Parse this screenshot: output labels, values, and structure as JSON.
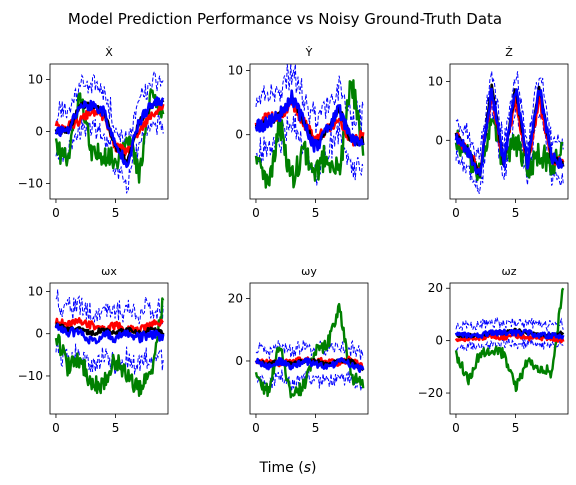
{
  "figure": {
    "title": "Model Prediction Performance vs Noisy Ground-Truth Data",
    "xlabel_prefix": "Time (",
    "xlabel_unit": "s",
    "xlabel_suffix": ")"
  },
  "colors": {
    "ground_truth": "#008000",
    "prediction_a": "#ff0000",
    "prediction_b": "#0000ff",
    "prediction_c": "#000000",
    "bounds": "#0000ff"
  },
  "chart_data": [
    {
      "type": "line",
      "title": "Ẋ",
      "xlim": [
        -0.5,
        9.4
      ],
      "ylim": [
        -13,
        13
      ],
      "xticks": [
        0,
        5
      ],
      "yticks": [
        -10,
        0,
        10
      ],
      "grid": false,
      "seed": 11,
      "series": [
        {
          "role": "ground_truth",
          "color": "#008000",
          "x": [
            0,
            1,
            2,
            3,
            4,
            5,
            6,
            7,
            8,
            9
          ],
          "values": [
            -3,
            -6,
            8,
            -5,
            -4,
            -6,
            0,
            -9,
            8,
            2
          ]
        },
        {
          "role": "prediction_a",
          "color": "#ff0000",
          "x": [
            0,
            1,
            2,
            3,
            4,
            5,
            6,
            7,
            8,
            9
          ],
          "values": [
            1,
            1,
            2,
            4,
            3,
            -3,
            -4,
            0,
            3,
            5
          ]
        },
        {
          "role": "prediction_b",
          "color": "#0000ff",
          "x": [
            0,
            1,
            2,
            3,
            4,
            5,
            6,
            7,
            8,
            9
          ],
          "values": [
            0,
            0,
            5,
            5,
            4,
            -3,
            -6,
            2,
            5,
            6
          ]
        },
        {
          "role": "prediction_c",
          "color": "#000000",
          "x": [
            0,
            1,
            2,
            3,
            4,
            5,
            6,
            7,
            8,
            9
          ],
          "values": [
            0,
            0,
            5,
            5,
            4,
            -3,
            -6,
            2,
            5,
            6
          ]
        }
      ],
      "band_width": 4
    },
    {
      "type": "line",
      "title": "Ẏ",
      "xlim": [
        -0.5,
        9.4
      ],
      "ylim": [
        -10,
        11
      ],
      "xticks": [
        0,
        5
      ],
      "yticks": [
        0,
        10
      ],
      "grid": false,
      "seed": 23,
      "series": [
        {
          "role": "ground_truth",
          "color": "#008000",
          "x": [
            0,
            1,
            2,
            3,
            4,
            5,
            6,
            7,
            8,
            9
          ],
          "values": [
            -3,
            -8,
            2,
            -7,
            -2,
            -6,
            -3,
            -6,
            9,
            -4
          ]
        },
        {
          "role": "prediction_a",
          "color": "#ff0000",
          "x": [
            0,
            1,
            2,
            3,
            4,
            5,
            6,
            7,
            8,
            9
          ],
          "values": [
            1,
            3,
            3,
            5,
            2,
            -1,
            1,
            2,
            -1,
            0
          ]
        },
        {
          "role": "prediction_b",
          "color": "#0000ff",
          "x": [
            0,
            1,
            2,
            3,
            4,
            5,
            6,
            7,
            8,
            9
          ],
          "values": [
            1,
            2,
            3,
            6,
            2,
            -2,
            1,
            4,
            -1,
            -1
          ]
        },
        {
          "role": "prediction_c",
          "color": "#000000",
          "x": [
            0,
            1,
            2,
            3,
            4,
            5,
            6,
            7,
            8,
            9
          ],
          "values": [
            1,
            2,
            3,
            6,
            2,
            -2,
            1,
            4,
            -1,
            -1
          ]
        }
      ],
      "band_width": 4
    },
    {
      "type": "line",
      "title": "Ż",
      "xlim": [
        -0.5,
        9.4
      ],
      "ylim": [
        -10,
        13
      ],
      "xticks": [
        0,
        5
      ],
      "yticks": [
        0,
        10
      ],
      "grid": false,
      "seed": 37,
      "series": [
        {
          "role": "ground_truth",
          "color": "#008000",
          "x": [
            0,
            1,
            2,
            3,
            4,
            5,
            6,
            7,
            8,
            9
          ],
          "values": [
            0,
            -3,
            -6,
            4,
            -4,
            0,
            -5,
            -2,
            -4,
            -2
          ]
        },
        {
          "role": "prediction_a",
          "color": "#ff0000",
          "x": [
            0,
            1,
            2,
            3,
            4,
            5,
            6,
            7,
            8,
            9
          ],
          "values": [
            1,
            -2,
            -5,
            8,
            -4,
            7,
            -4,
            7,
            -3,
            -4
          ]
        },
        {
          "role": "prediction_b",
          "color": "#0000ff",
          "x": [
            0,
            1,
            2,
            3,
            4,
            5,
            6,
            7,
            8,
            9
          ],
          "values": [
            1,
            -2,
            -6,
            9,
            -4,
            9,
            -4,
            9,
            -3,
            -4
          ]
        },
        {
          "role": "prediction_c",
          "color": "#000000",
          "x": [
            0,
            1,
            2,
            3,
            4,
            5,
            6,
            7,
            8,
            9
          ],
          "values": [
            1,
            -2,
            -6,
            9,
            -4,
            9,
            -4,
            9,
            -3,
            -4
          ]
        }
      ],
      "band_width": 3
    },
    {
      "type": "line",
      "title": "ωx",
      "xlim": [
        -0.5,
        9.4
      ],
      "ylim": [
        -19,
        12
      ],
      "xticks": [
        0,
        5
      ],
      "yticks": [
        -10,
        0,
        10
      ],
      "grid": false,
      "seed": 41,
      "series": [
        {
          "role": "ground_truth",
          "color": "#008000",
          "x": [
            0,
            1,
            2,
            3,
            4,
            5,
            6,
            7,
            8,
            9
          ],
          "values": [
            0,
            -8,
            -6,
            -12,
            -12,
            -6,
            -10,
            -13,
            -10,
            8
          ]
        },
        {
          "role": "prediction_a",
          "color": "#ff0000",
          "x": [
            0,
            1,
            2,
            3,
            4,
            5,
            6,
            7,
            8,
            9
          ],
          "values": [
            3,
            2,
            3,
            2,
            1,
            2,
            1,
            1,
            2,
            3
          ]
        },
        {
          "role": "prediction_b",
          "color": "#0000ff",
          "x": [
            0,
            1,
            2,
            3,
            4,
            5,
            6,
            7,
            8,
            9
          ],
          "values": [
            2,
            0,
            1,
            -2,
            0,
            -1,
            0,
            -1,
            0,
            -1
          ]
        },
        {
          "role": "prediction_c",
          "color": "#000000",
          "x": [
            0,
            1,
            2,
            3,
            4,
            5,
            6,
            7,
            8,
            9
          ],
          "values": [
            2,
            1,
            1,
            0,
            1,
            0,
            1,
            0,
            1,
            0
          ]
        }
      ],
      "band_width": 6
    },
    {
      "type": "line",
      "title": "ωy",
      "xlim": [
        -0.5,
        9.4
      ],
      "ylim": [
        -17,
        25
      ],
      "xticks": [
        0,
        5
      ],
      "yticks": [
        0,
        20
      ],
      "grid": false,
      "seed": 53,
      "series": [
        {
          "role": "ground_truth",
          "color": "#008000",
          "x": [
            0,
            1,
            2,
            3,
            4,
            5,
            6,
            7,
            8,
            9
          ],
          "values": [
            -5,
            -10,
            5,
            -12,
            -8,
            3,
            5,
            18,
            -5,
            -8
          ]
        },
        {
          "role": "prediction_a",
          "color": "#ff0000",
          "x": [
            0,
            1,
            2,
            3,
            4,
            5,
            6,
            7,
            8,
            9
          ],
          "values": [
            0,
            0,
            -1,
            0,
            1,
            0,
            0,
            -1,
            1,
            -2
          ]
        },
        {
          "role": "prediction_b",
          "color": "#0000ff",
          "x": [
            0,
            1,
            2,
            3,
            4,
            5,
            6,
            7,
            8,
            9
          ],
          "values": [
            0,
            -2,
            0,
            -2,
            0,
            -1,
            -2,
            0,
            -1,
            -3
          ]
        },
        {
          "role": "prediction_c",
          "color": "#000000",
          "x": [
            0,
            1,
            2,
            3,
            4,
            5,
            6,
            7,
            8,
            9
          ],
          "values": [
            0,
            -1,
            0,
            -1,
            0,
            0,
            -1,
            0,
            0,
            -3
          ]
        }
      ],
      "band_width": 5
    },
    {
      "type": "line",
      "title": "ωz",
      "xlim": [
        -0.5,
        9.4
      ],
      "ylim": [
        -28,
        22
      ],
      "xticks": [
        0,
        5
      ],
      "yticks": [
        -20,
        0,
        20
      ],
      "grid": false,
      "seed": 67,
      "series": [
        {
          "role": "ground_truth",
          "color": "#008000",
          "x": [
            0,
            1,
            2,
            3,
            4,
            5,
            6,
            7,
            8,
            9
          ],
          "values": [
            -5,
            -15,
            -5,
            -3,
            -5,
            -18,
            -8,
            -10,
            -12,
            20
          ]
        },
        {
          "role": "prediction_a",
          "color": "#ff0000",
          "x": [
            0,
            1,
            2,
            3,
            4,
            5,
            6,
            7,
            8,
            9
          ],
          "values": [
            0,
            1,
            1,
            2,
            1,
            2,
            1,
            1,
            1,
            0
          ]
        },
        {
          "role": "prediction_b",
          "color": "#0000ff",
          "x": [
            0,
            1,
            2,
            3,
            4,
            5,
            6,
            7,
            8,
            9
          ],
          "values": [
            2,
            2,
            2,
            3,
            3,
            3,
            3,
            2,
            2,
            2
          ]
        },
        {
          "role": "prediction_c",
          "color": "#000000",
          "x": [
            0,
            1,
            2,
            3,
            4,
            5,
            6,
            7,
            8,
            9
          ],
          "values": [
            2,
            2,
            2,
            3,
            3,
            4,
            3,
            2,
            2,
            3
          ]
        }
      ],
      "band_width": 4
    }
  ]
}
